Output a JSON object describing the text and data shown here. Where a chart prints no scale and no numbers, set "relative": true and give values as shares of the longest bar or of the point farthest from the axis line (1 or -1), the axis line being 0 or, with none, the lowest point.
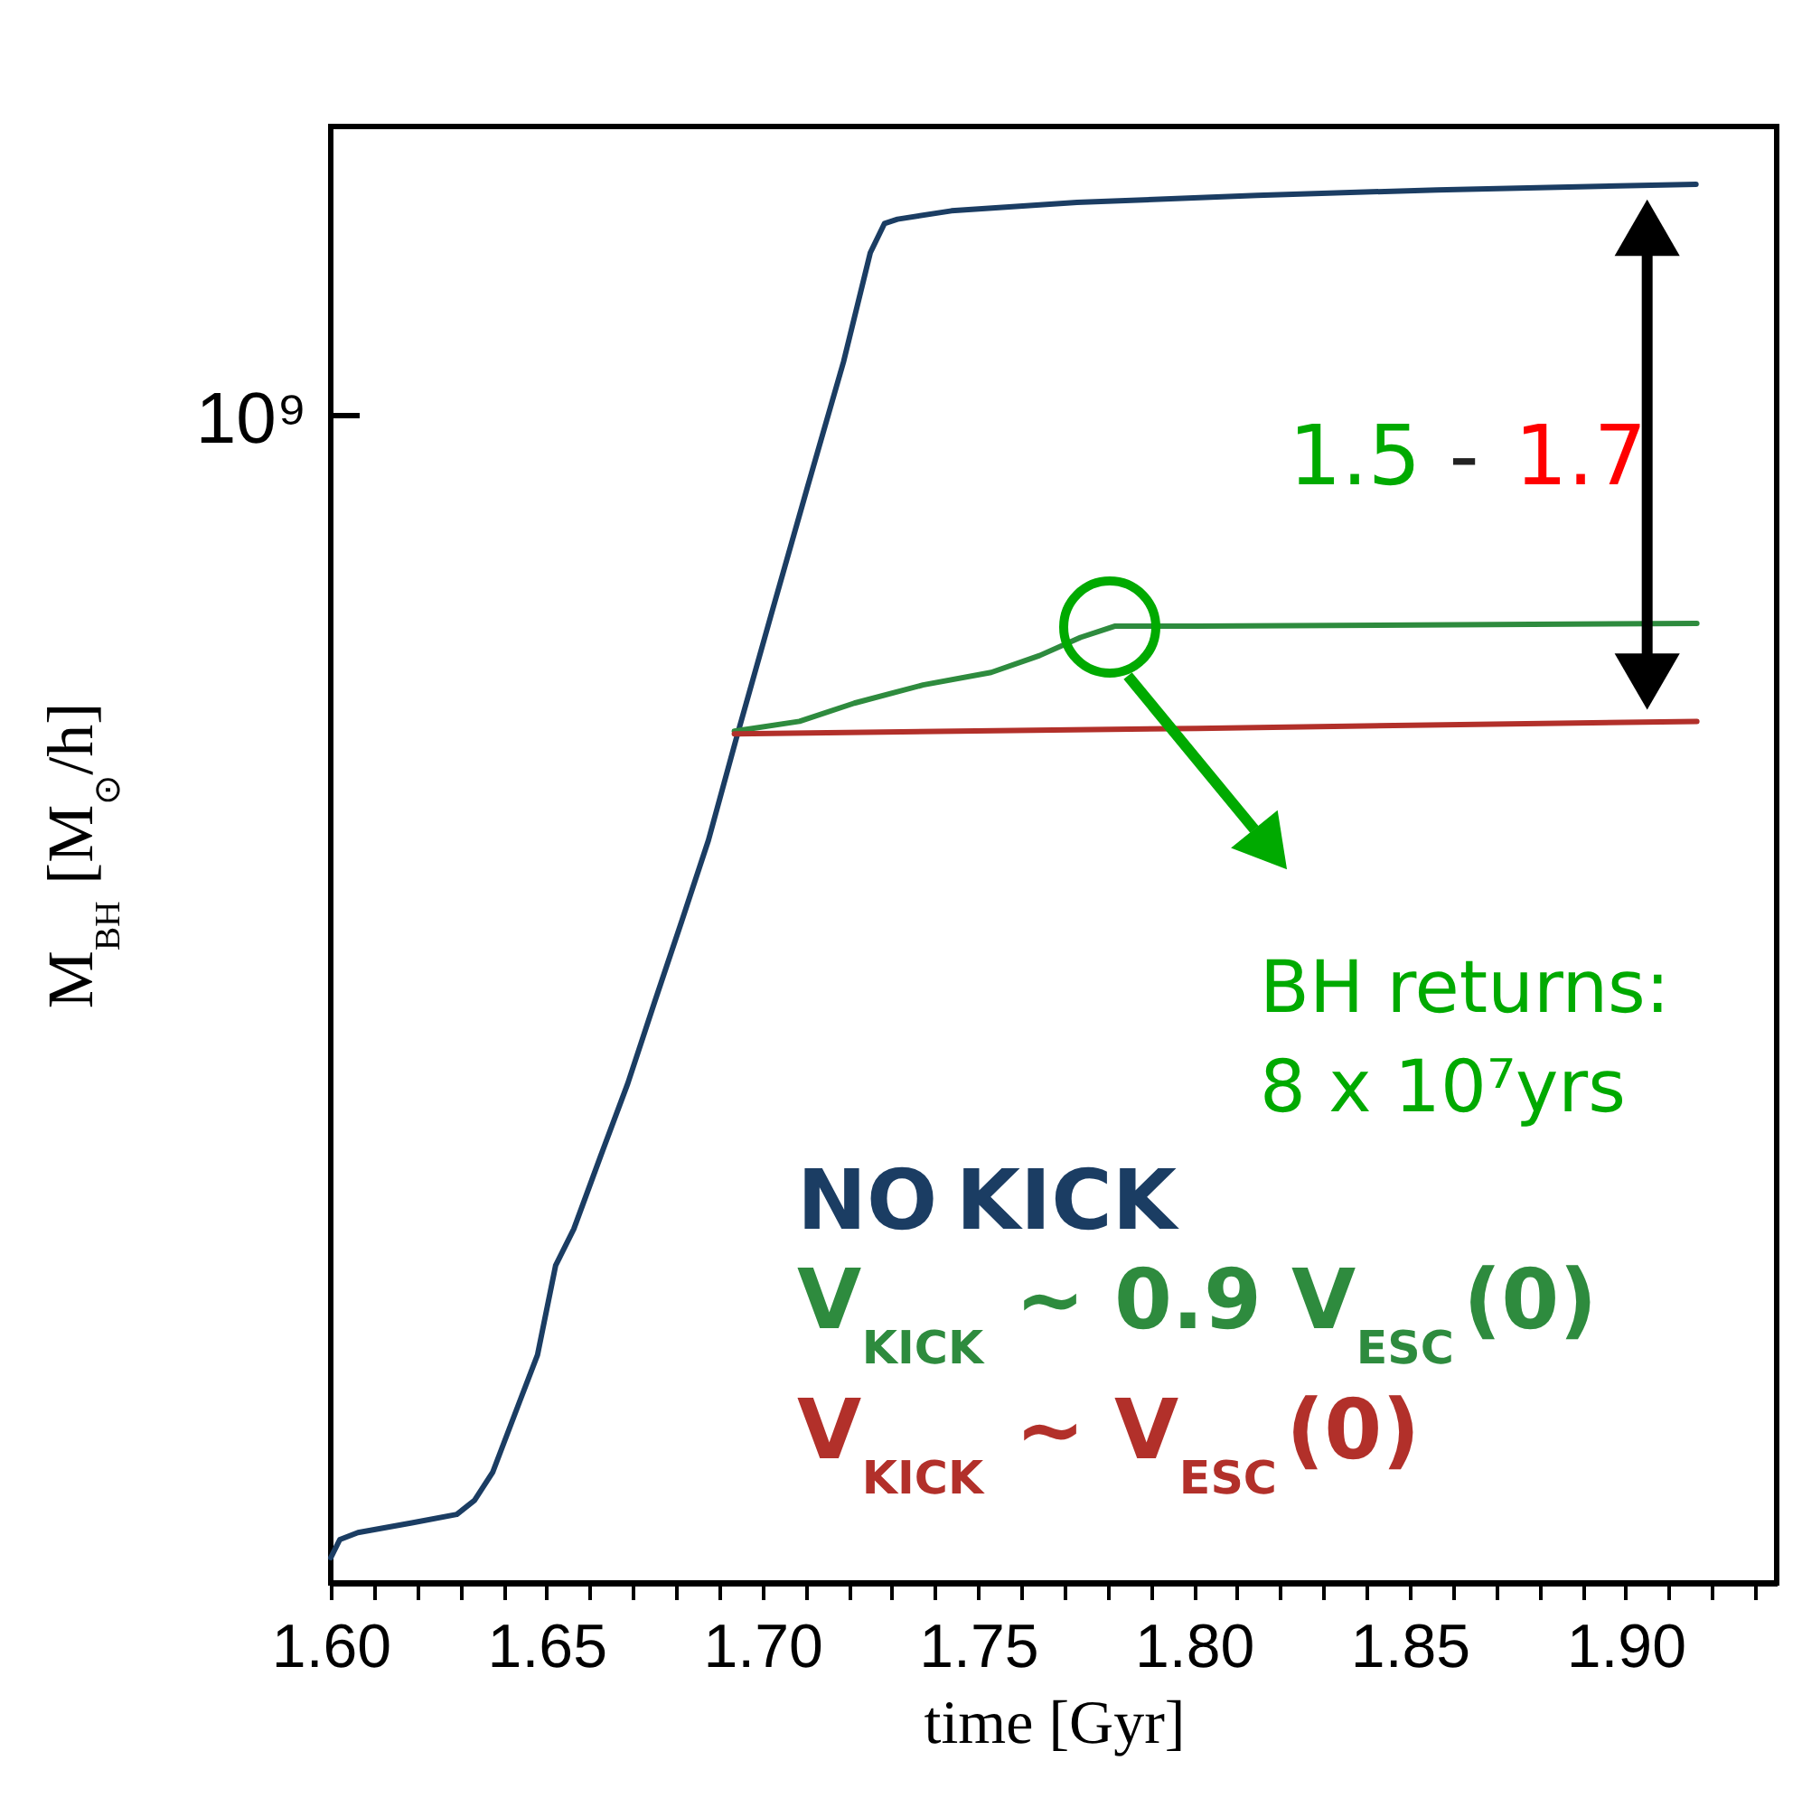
{
  "chart_data": {
    "type": "line",
    "xlabel": "time [Gyr]",
    "ylabel": "M$_{BH}$ [M$_{⊙}$/h]",
    "relative": true,
    "grid": false,
    "legend": "bottom right",
    "marker": "none",
    "line_style": "solid",
    "xlim": [
      1.6,
      1.935
    ],
    "xticks": [
      {
        "value": 1.6,
        "label": "1.60"
      },
      {
        "value": 1.61,
        "label": null
      },
      {
        "value": 1.62,
        "label": null
      },
      {
        "value": 1.63,
        "label": null
      },
      {
        "value": 1.64,
        "label": null
      },
      1.65,
      {
        "value": 1.66,
        "label": null
      },
      {
        "value": 1.67,
        "label": null
      },
      {
        "value": 1.68,
        "label": null
      },
      {
        "value": 1.69,
        "label": null
      },
      {
        "value": 1.7,
        "label": "1.70"
      },
      {
        "value": 1.71,
        "label": null
      },
      {
        "value": 1.72,
        "label": null
      },
      {
        "value": 1.73,
        "label": null
      },
      {
        "value": 1.74,
        "label": null
      },
      1.75,
      {
        "value": 1.76,
        "label": null
      },
      {
        "value": 1.77,
        "label": null
      },
      {
        "value": 1.78,
        "label": null
      },
      {
        "value": 1.79,
        "label": null
      },
      {
        "value": 1.8,
        "label": "1.80"
      },
      {
        "value": 1.81,
        "label": null
      },
      {
        "value": 1.82,
        "label": null
      },
      {
        "value": 1.83,
        "label": null
      },
      {
        "value": 1.84,
        "label": null
      },
      1.85,
      {
        "value": 1.86,
        "label": null
      },
      {
        "value": 1.87,
        "label": null
      },
      {
        "value": 1.88,
        "label": null
      },
      {
        "value": 1.89,
        "label": null
      },
      {
        "value": 1.9,
        "label": "1.90"
      },
      {
        "value": 1.91,
        "label": null
      },
      {
        "value": 1.92,
        "label": null
      },
      {
        "value": 1.93,
        "label": null
      }
    ],
    "series": [
      {
        "name": "NO KICK",
        "color": "#1b3d63",
        "x": [
          1.6,
          1.6021,
          1.6063,
          1.6188,
          1.6292,
          1.6333,
          1.6375,
          1.6438,
          1.6479,
          1.6521,
          1.6563,
          1.6625,
          1.6688,
          1.675,
          1.6813,
          1.6875,
          1.6938,
          1.7021,
          1.7104,
          1.7188,
          1.725,
          1.7283,
          1.7313,
          1.7438,
          1.7729,
          1.8146,
          1.8563,
          1.9163
        ],
        "values": [
          0.018,
          0.031,
          0.036,
          0.043,
          0.049,
          0.059,
          0.079,
          0.13,
          0.163,
          0.227,
          0.253,
          0.305,
          0.357,
          0.415,
          0.473,
          0.531,
          0.602,
          0.693,
          0.783,
          0.873,
          0.951,
          0.972,
          0.975,
          0.981,
          0.987,
          0.992,
          0.996,
          1
        ]
      },
      {
        "name": "V$_{KICK}$ ~ 0.9 V$_{ESC}$(0)",
        "color": "#2e8b3e",
        "x": [
          1.6935,
          1.7086,
          1.7213,
          1.7372,
          1.753,
          1.7642,
          1.7737,
          1.7816,
          1.8007,
          1.9165
        ],
        "values": [
          0.609,
          0.616,
          0.629,
          0.642,
          0.651,
          0.663,
          0.676,
          0.684,
          0.684,
          0.686
        ]
      },
      {
        "name": "V$_{KICK}$ ~ V$_{ESC}$(0)",
        "color": "#b2302a",
        "x": [
          1.6935,
          1.8007,
          1.9165
        ],
        "values": [
          0.607,
          0.611,
          0.616
        ]
      }
    ],
    "annotations": [
      "10⁹",
      "1.5",
      "-",
      "1.7",
      "BH returns:",
      "8 x 10⁷yrs"
    ]
  }
}
